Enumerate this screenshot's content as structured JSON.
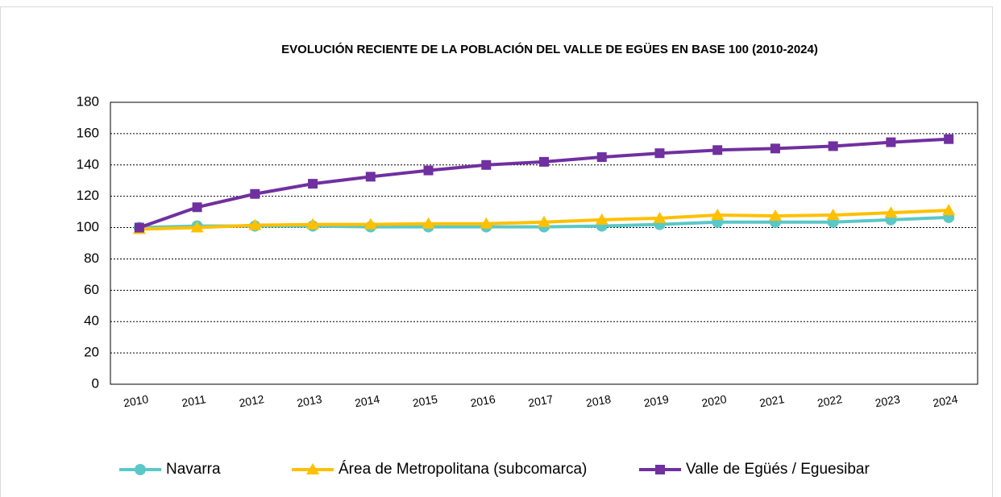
{
  "chart_data": {
    "type": "line",
    "title": "EVOLUCIÓN RECIENTE DE LA POBLACIÓN DEL VALLE DE EGÜES EN BASE 100  (2010-2024)",
    "categories": [
      "2010",
      "2011",
      "2012",
      "2013",
      "2014",
      "2015",
      "2016",
      "2017",
      "2018",
      "2019",
      "2020",
      "2021",
      "2022",
      "2023",
      "2024"
    ],
    "series": [
      {
        "name": "Navarra",
        "color": "#5bc8c8",
        "marker": "circle",
        "values": [
          100,
          101,
          101,
          101,
          100.5,
          100.5,
          100.5,
          100.5,
          101,
          102,
          103.5,
          103.5,
          103.5,
          105,
          106.5
        ]
      },
      {
        "name": "Área de Metropolitana (subcomarca)",
        "color": "#ffc000",
        "marker": "triangle",
        "values": [
          99,
          100,
          101.5,
          102,
          102,
          102.5,
          102.5,
          103.5,
          105,
          106,
          108,
          107.5,
          108,
          109.5,
          111
        ]
      },
      {
        "name": "Valle de Egüés / Eguesibar",
        "color": "#7030a0",
        "marker": "square",
        "values": [
          100,
          113,
          121.5,
          128,
          132.5,
          136.5,
          140,
          142,
          145,
          147.5,
          149.5,
          150.5,
          152,
          154.5,
          156.5
        ]
      }
    ],
    "ylim": [
      0,
      180
    ],
    "yticks": [
      0,
      20,
      40,
      60,
      80,
      100,
      120,
      140,
      160,
      180
    ],
    "grid": true,
    "legend": "bottom"
  }
}
